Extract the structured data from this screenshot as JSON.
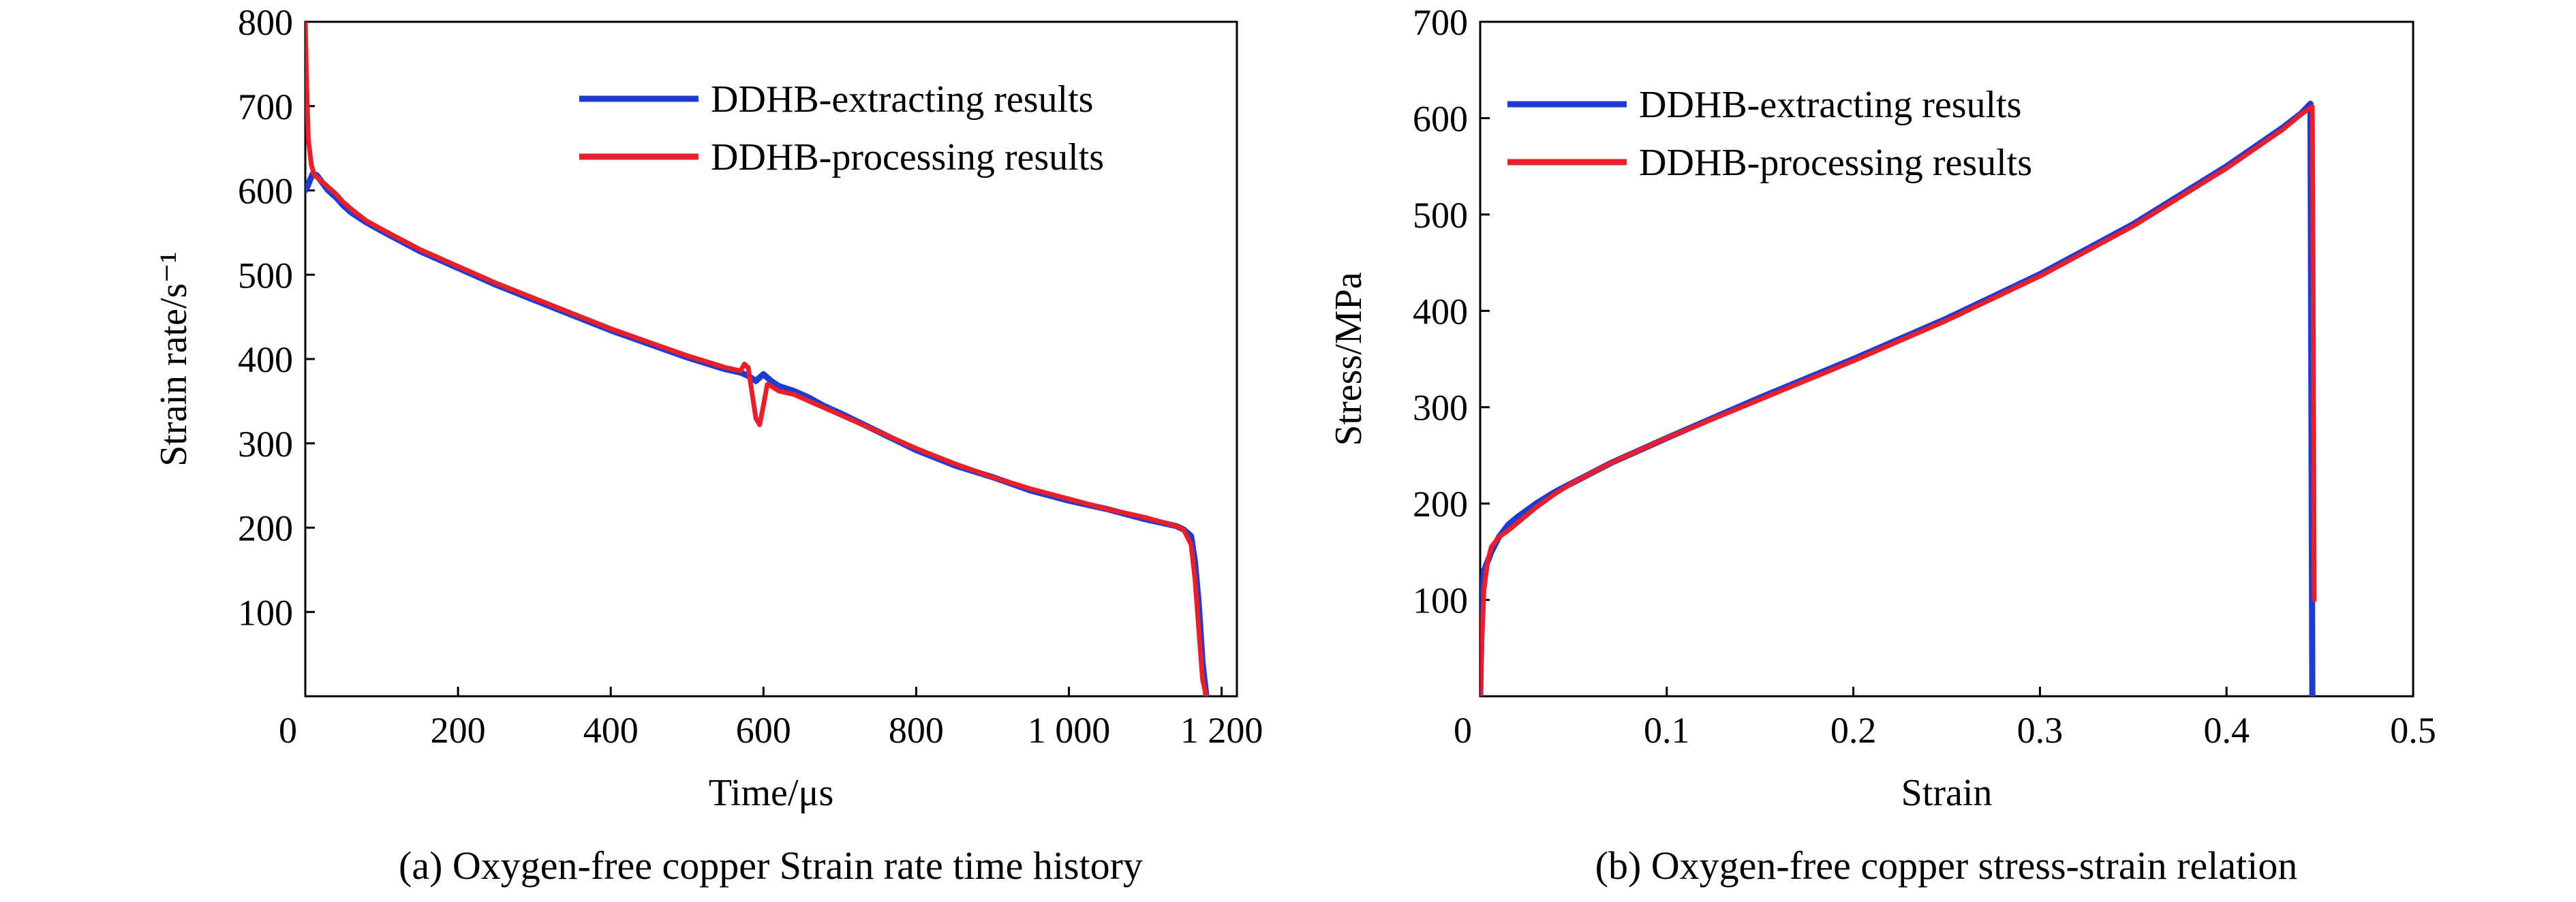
{
  "chart_data": [
    {
      "type": "line",
      "caption": "(a) Oxygen-free copper Strain rate time history",
      "xlabel": "Time/μs",
      "ylabel": "Strain rate/s⁻¹",
      "xlim": [
        0,
        1220
      ],
      "ylim": [
        0,
        800
      ],
      "xticks": [
        0,
        200,
        400,
        600,
        800,
        1000,
        1200
      ],
      "xtick_labels": [
        "0",
        "200",
        "400",
        "600",
        "800",
        "1 000",
        "1 200"
      ],
      "yticks": [
        100,
        200,
        300,
        400,
        500,
        600,
        700,
        800
      ],
      "ytick_labels": [
        "100",
        "200",
        "300",
        "400",
        "500",
        "600",
        "700",
        "800"
      ],
      "legend_position": "top-right",
      "series": [
        {
          "name": "DDHB-extracting results",
          "color": "#1f3bd1",
          "x": [
            0,
            3,
            6,
            10,
            15,
            20,
            30,
            40,
            50,
            60,
            80,
            100,
            150,
            200,
            250,
            300,
            350,
            400,
            450,
            500,
            550,
            570,
            580,
            590,
            600,
            605,
            610,
            620,
            640,
            660,
            680,
            700,
            750,
            800,
            850,
            900,
            950,
            1000,
            1050,
            1100,
            1140,
            1150,
            1160,
            1165,
            1170,
            1175,
            1180
          ],
          "y": [
            600,
            605,
            612,
            620,
            618,
            612,
            600,
            592,
            582,
            574,
            562,
            552,
            528,
            508,
            488,
            470,
            452,
            434,
            418,
            402,
            388,
            384,
            380,
            374,
            382,
            378,
            374,
            368,
            362,
            354,
            344,
            336,
            314,
            292,
            274,
            260,
            244,
            232,
            222,
            210,
            202,
            198,
            190,
            160,
            110,
            40,
            0
          ]
        },
        {
          "name": "DDHB-processing results",
          "color": "#e8202b",
          "x": [
            0,
            2,
            4,
            8,
            12,
            20,
            30,
            40,
            50,
            60,
            80,
            100,
            150,
            200,
            250,
            300,
            350,
            400,
            450,
            500,
            550,
            570,
            575,
            580,
            585,
            590,
            595,
            600,
            605,
            610,
            620,
            640,
            660,
            680,
            700,
            750,
            800,
            850,
            900,
            950,
            1000,
            1050,
            1100,
            1140,
            1150,
            1160,
            1165,
            1170,
            1175,
            1180
          ],
          "y": [
            800,
            720,
            660,
            630,
            618,
            612,
            604,
            596,
            586,
            578,
            564,
            554,
            530,
            510,
            490,
            472,
            454,
            436,
            420,
            404,
            390,
            386,
            394,
            390,
            360,
            330,
            322,
            345,
            370,
            368,
            362,
            358,
            350,
            342,
            334,
            314,
            294,
            276,
            260,
            246,
            234,
            222,
            212,
            202,
            198,
            180,
            140,
            80,
            20,
            0
          ]
        }
      ]
    },
    {
      "type": "line",
      "caption": "(b) Oxygen-free copper stress-strain relation",
      "xlabel": "Strain",
      "ylabel": "Stress/MPa",
      "xlim": [
        0,
        0.5
      ],
      "ylim": [
        0,
        700
      ],
      "xticks": [
        0,
        0.1,
        0.2,
        0.3,
        0.4,
        0.5
      ],
      "xtick_labels": [
        "0",
        "0.1",
        "0.2",
        "0.3",
        "0.4",
        "0.5"
      ],
      "yticks": [
        100,
        200,
        300,
        400,
        500,
        600,
        700
      ],
      "ytick_labels": [
        "100",
        "200",
        "300",
        "400",
        "500",
        "600",
        "700"
      ],
      "legend_position": "top-left",
      "series": [
        {
          "name": "DDHB-extracting results",
          "color": "#1f3bd1",
          "x": [
            0,
            0.001,
            0.002,
            0.004,
            0.006,
            0.01,
            0.015,
            0.02,
            0.03,
            0.04,
            0.05,
            0.07,
            0.1,
            0.15,
            0.2,
            0.25,
            0.3,
            0.35,
            0.4,
            0.43,
            0.44,
            0.445,
            0.4455,
            0.446
          ],
          "y": [
            0,
            100,
            130,
            140,
            150,
            165,
            178,
            186,
            200,
            212,
            222,
            242,
            268,
            310,
            350,
            392,
            438,
            490,
            550,
            590,
            605,
            615,
            300,
            0
          ]
        },
        {
          "name": "DDHB-processing results",
          "color": "#e8202b",
          "x": [
            0,
            0.001,
            0.002,
            0.004,
            0.006,
            0.01,
            0.015,
            0.02,
            0.03,
            0.04,
            0.05,
            0.07,
            0.1,
            0.15,
            0.2,
            0.25,
            0.3,
            0.35,
            0.4,
            0.43,
            0.44,
            0.446,
            0.4465,
            0.447
          ],
          "y": [
            0,
            60,
            110,
            140,
            155,
            165,
            172,
            180,
            196,
            210,
            222,
            242,
            268,
            308,
            348,
            390,
            436,
            488,
            548,
            588,
            604,
            612,
            400,
            100
          ]
        }
      ]
    }
  ]
}
